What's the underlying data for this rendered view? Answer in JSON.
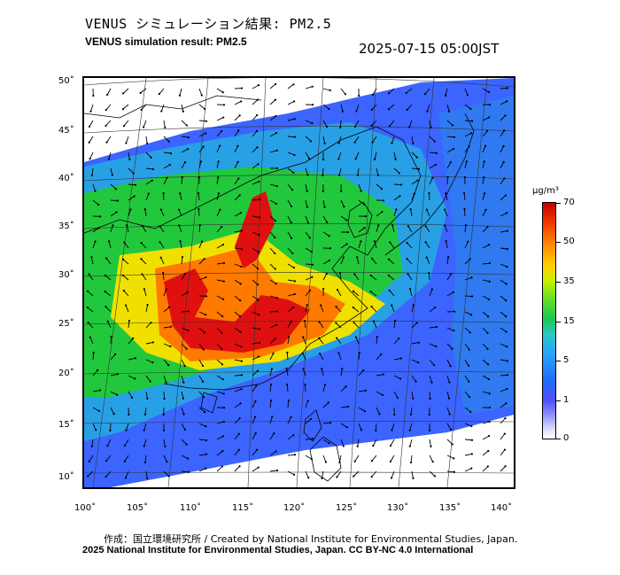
{
  "title_jp": "VENUS シミュレーション結果: PM2.5",
  "title_en": "VENUS simulation result: PM2.5",
  "timestamp": "2025-07-15 05:00JST",
  "lat_labels": [
    "50˚",
    "45˚",
    "40˚",
    "35˚",
    "30˚",
    "25˚",
    "20˚",
    "15˚",
    "10˚"
  ],
  "lon_labels": [
    "100˚",
    "105˚",
    "110˚",
    "115˚",
    "120˚",
    "125˚",
    "130˚",
    "135˚",
    "140˚"
  ],
  "colorbar": {
    "unit": "μg/m³",
    "ticks": [
      "70",
      "50",
      "35",
      "15",
      "5",
      "1",
      "0"
    ]
  },
  "credit_line1": "作成：国立環境研究所 / Created by National Institute for Environmental Studies, Japan.",
  "credit_line2": "2025 National Institute for Environmental Studies, Japan. CC BY-NC 4.0 International",
  "colors": {
    "very_high": "#e01010",
    "high": "#ff7a00",
    "mid_high": "#f0e000",
    "mid": "#22c83c",
    "low": "#28a0e6",
    "very_low": "#3c64ff",
    "minimal": "#a8b4ff"
  }
}
